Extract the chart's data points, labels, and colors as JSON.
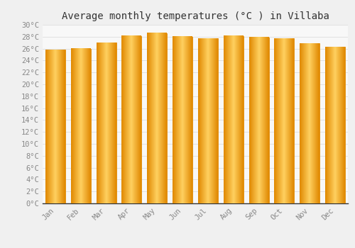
{
  "title": "Average monthly temperatures (°C ) in Villaba",
  "months": [
    "Jan",
    "Feb",
    "Mar",
    "Apr",
    "May",
    "Jun",
    "Jul",
    "Aug",
    "Sep",
    "Oct",
    "Nov",
    "Dec"
  ],
  "temperatures": [
    25.8,
    26.0,
    27.0,
    28.1,
    28.6,
    28.0,
    27.7,
    28.1,
    27.9,
    27.7,
    26.9,
    26.3
  ],
  "bar_color_center": "#FFD060",
  "bar_color_edge": "#E08800",
  "background_color": "#f0f0f0",
  "plot_bg_color": "#f8f8f8",
  "ytick_step": 2,
  "ylim": [
    0,
    30
  ],
  "title_fontsize": 10,
  "tick_fontsize": 7.5,
  "grid_color": "#d8d8d8",
  "spine_color": "#aaaaaa",
  "text_color": "#888888"
}
